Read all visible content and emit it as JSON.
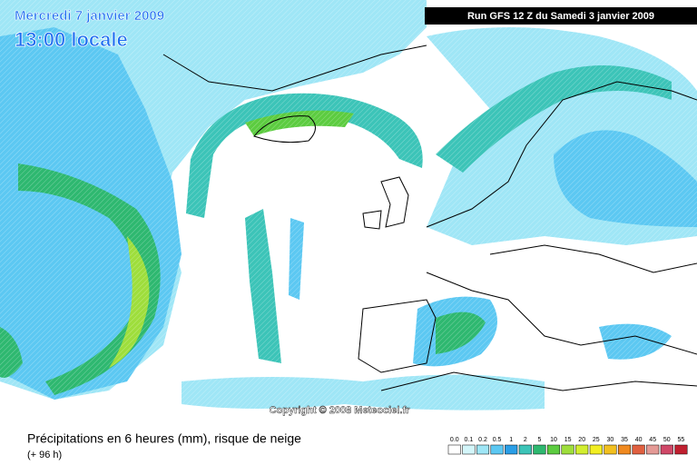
{
  "header": {
    "date": "Mercredi 7 janvier 2009",
    "time": "13:00 locale",
    "run": "Run GFS 12 Z du Samedi 3 janvier 2009"
  },
  "copyright": "Copyright © 2008 Meteociel.fr",
  "caption": {
    "title": "Précipitations en 6 heures (mm), risque de neige",
    "lead": "(+ 96 h)"
  },
  "legend": [
    {
      "label": "0.0",
      "color": "#ffffff"
    },
    {
      "label": "0.1",
      "color": "#d4f6fa"
    },
    {
      "label": "0.2",
      "color": "#9fe6f6"
    },
    {
      "label": "0.5",
      "color": "#5cc8f2"
    },
    {
      "label": "1",
      "color": "#2a9ee6"
    },
    {
      "label": "2",
      "color": "#3cc4b8"
    },
    {
      "label": "5",
      "color": "#2eb870"
    },
    {
      "label": "10",
      "color": "#5ccc40"
    },
    {
      "label": "15",
      "color": "#9ede3c"
    },
    {
      "label": "20",
      "color": "#d2ee30"
    },
    {
      "label": "25",
      "color": "#f2ee22"
    },
    {
      "label": "30",
      "color": "#f2c020"
    },
    {
      "label": "35",
      "color": "#f08a20"
    },
    {
      "label": "40",
      "color": "#e06040"
    },
    {
      "label": "45",
      "color": "#e49a96"
    },
    {
      "label": "50",
      "color": "#d04868"
    },
    {
      "label": "55",
      "color": "#c02030"
    }
  ]
}
